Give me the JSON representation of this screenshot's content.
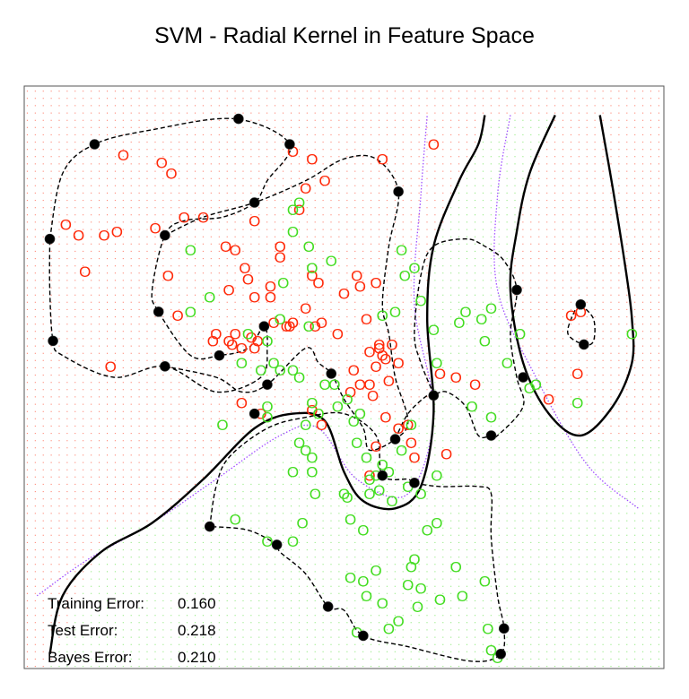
{
  "chart_data": {
    "type": "scatter",
    "title": "SVM - Radial Kernel in Feature Space",
    "xlabel": "",
    "ylabel": "",
    "grid": false,
    "legend": "none",
    "point_marker": "O",
    "support_vector_marker": "filled-circle",
    "colors": {
      "class_red": "#ff2a0a",
      "class_green": "#44dd22",
      "support_vector": "#000000",
      "bayes_boundary": "#a050ff",
      "svm_boundary": "#000000",
      "margin": "#000000"
    },
    "series": [
      {
        "class": "red",
        "points": [
          [
            15.5,
            90.5
          ],
          [
            21.5,
            89.5
          ],
          [
            23,
            88
          ],
          [
            42,
            91
          ],
          [
            45,
            90
          ],
          [
            44,
            86
          ],
          [
            47,
            87
          ],
          [
            64,
            92
          ],
          [
            56,
            90
          ],
          [
            43,
            83
          ],
          [
            36,
            81.5
          ],
          [
            6.5,
            81
          ],
          [
            8.5,
            79.5
          ],
          [
            12.5,
            79.5
          ],
          [
            14.5,
            80
          ],
          [
            20.5,
            80.5
          ],
          [
            25,
            82
          ],
          [
            28,
            82
          ],
          [
            33,
            77.5
          ],
          [
            34.5,
            75
          ],
          [
            9.5,
            74.5
          ],
          [
            22.5,
            74
          ],
          [
            31.5,
            78
          ],
          [
            35,
            73.5
          ],
          [
            38.5,
            72.5
          ],
          [
            40,
            76.5
          ],
          [
            40,
            78
          ],
          [
            45,
            74
          ],
          [
            46,
            73
          ],
          [
            50,
            71.5
          ],
          [
            49,
            66
          ],
          [
            52,
            74
          ],
          [
            52.5,
            72.5
          ],
          [
            55,
            73
          ],
          [
            53.5,
            68
          ],
          [
            32,
            72
          ],
          [
            36,
            71
          ],
          [
            38.5,
            71
          ],
          [
            39,
            67.5
          ],
          [
            41,
            67
          ],
          [
            42,
            67.5
          ],
          [
            44,
            69.5
          ],
          [
            45.5,
            67
          ],
          [
            46.5,
            67.5
          ],
          [
            32,
            65
          ],
          [
            29.5,
            65
          ],
          [
            30,
            66
          ],
          [
            32.5,
            64.5
          ],
          [
            33,
            66
          ],
          [
            34,
            64
          ],
          [
            35.5,
            65.5
          ],
          [
            36,
            64
          ],
          [
            36.5,
            65
          ],
          [
            41.5,
            67
          ],
          [
            24,
            68.5
          ],
          [
            13.5,
            61.5
          ],
          [
            54,
            63.5
          ],
          [
            55,
            61.5
          ],
          [
            55.5,
            64
          ],
          [
            56.5,
            62.5
          ],
          [
            57.5,
            64.5
          ],
          [
            58.5,
            62
          ],
          [
            57,
            59.5
          ],
          [
            54,
            59
          ],
          [
            52.5,
            59
          ],
          [
            51,
            58
          ],
          [
            51.5,
            61
          ],
          [
            54.5,
            57.5
          ],
          [
            56.5,
            54.5
          ],
          [
            58.5,
            53
          ],
          [
            60,
            53.5
          ],
          [
            60.5,
            51
          ],
          [
            45,
            55.5
          ],
          [
            46.5,
            53.5
          ],
          [
            34,
            56.5
          ],
          [
            37,
            55
          ],
          [
            67.5,
            60
          ],
          [
            70.5,
            59
          ],
          [
            65,
            60.5
          ],
          [
            56,
            63
          ],
          [
            55.5,
            64.5
          ],
          [
            82,
            57
          ],
          [
            55,
            50.5
          ],
          [
            54,
            46.5
          ],
          [
            61,
            49
          ],
          [
            66,
            49.5
          ],
          [
            86.5,
            60.5
          ],
          [
            85.5,
            68.5
          ],
          [
            87,
            69
          ]
        ]
      },
      {
        "class": "green",
        "points": [
          [
            43,
            84
          ],
          [
            42,
            83
          ],
          [
            42,
            80
          ],
          [
            26,
            77.5
          ],
          [
            44.5,
            78
          ],
          [
            45,
            75
          ],
          [
            48,
            76
          ],
          [
            59,
            77.5
          ],
          [
            61,
            75
          ],
          [
            59.5,
            74
          ],
          [
            40.5,
            73
          ],
          [
            29,
            71
          ],
          [
            26,
            69
          ],
          [
            35,
            66
          ],
          [
            38,
            65
          ],
          [
            40,
            68
          ],
          [
            44.5,
            67
          ],
          [
            56,
            68.5
          ],
          [
            62,
            70.5
          ],
          [
            58,
            69
          ],
          [
            64,
            66.5
          ],
          [
            64.5,
            62
          ],
          [
            73,
            69.5
          ],
          [
            68,
            67.5
          ],
          [
            69,
            69
          ],
          [
            71.5,
            68
          ],
          [
            72,
            65
          ],
          [
            75.5,
            62
          ],
          [
            77.5,
            66
          ],
          [
            80,
            59
          ],
          [
            79,
            58.5
          ],
          [
            70,
            56
          ],
          [
            73,
            54.5
          ],
          [
            86.5,
            56.5
          ],
          [
            95,
            66
          ],
          [
            34,
            62
          ],
          [
            37,
            61
          ],
          [
            39,
            62
          ],
          [
            40,
            61
          ],
          [
            42,
            61
          ],
          [
            43,
            60
          ],
          [
            45,
            56.5
          ],
          [
            46,
            55
          ],
          [
            49,
            56
          ],
          [
            48.5,
            59
          ],
          [
            47,
            59
          ],
          [
            50.5,
            57
          ],
          [
            38,
            56
          ],
          [
            38,
            54.5
          ],
          [
            31,
            53.5
          ],
          [
            44,
            53.5
          ],
          [
            43,
            51
          ],
          [
            44,
            50
          ],
          [
            45,
            49
          ],
          [
            42,
            47
          ],
          [
            45,
            47
          ],
          [
            45.5,
            44
          ],
          [
            52,
            51
          ],
          [
            51.5,
            54
          ],
          [
            52.5,
            55
          ],
          [
            53.5,
            49
          ],
          [
            55,
            46.5
          ],
          [
            54,
            44
          ],
          [
            55.5,
            44.5
          ],
          [
            56,
            48
          ],
          [
            57,
            47
          ],
          [
            60,
            45
          ],
          [
            60.5,
            53.5
          ],
          [
            59,
            50
          ],
          [
            50,
            44
          ],
          [
            50.5,
            43.5
          ],
          [
            51,
            40.5
          ],
          [
            53,
            39
          ],
          [
            54,
            46
          ],
          [
            57.5,
            43
          ],
          [
            62,
            44
          ],
          [
            64.5,
            46.5
          ],
          [
            64.5,
            40
          ],
          [
            63,
            39
          ],
          [
            61,
            35
          ],
          [
            60.5,
            34
          ],
          [
            60,
            31.5
          ],
          [
            62,
            31
          ],
          [
            65,
            29.5
          ],
          [
            61.5,
            28.5
          ],
          [
            58.5,
            26.5
          ],
          [
            56,
            29
          ],
          [
            53.5,
            30
          ],
          [
            55,
            33.5
          ],
          [
            53,
            32
          ],
          [
            51,
            32.5
          ],
          [
            57,
            25.5
          ],
          [
            52,
            25
          ],
          [
            33,
            40.5
          ],
          [
            38,
            37.5
          ],
          [
            42,
            37.5
          ],
          [
            43.5,
            40
          ],
          [
            67.5,
            34
          ],
          [
            72,
            32
          ],
          [
            68.5,
            30
          ],
          [
            72.5,
            25.5
          ],
          [
            73,
            22.5
          ],
          [
            74,
            21.5
          ]
        ]
      },
      {
        "class": "support_vector",
        "points": [
          [
            11,
            92
          ],
          [
            33.5,
            95.5
          ],
          [
            41.5,
            92
          ],
          [
            58.5,
            85.5
          ],
          [
            36,
            84
          ],
          [
            22,
            79.5
          ],
          [
            4,
            79
          ],
          [
            21,
            69
          ],
          [
            30.5,
            63
          ],
          [
            37.5,
            67
          ],
          [
            4.5,
            65
          ],
          [
            22,
            61.5
          ],
          [
            38,
            59
          ],
          [
            48,
            60.5
          ],
          [
            64,
            57.5
          ],
          [
            58,
            51.5
          ],
          [
            77,
            72
          ],
          [
            73,
            52
          ],
          [
            87,
            70
          ],
          [
            87.5,
            64.5
          ],
          [
            78,
            60
          ],
          [
            36,
            55
          ],
          [
            56,
            46.5
          ],
          [
            61,
            45.5
          ],
          [
            29,
            39.5
          ],
          [
            39.5,
            37
          ],
          [
            47.5,
            28.5
          ],
          [
            53,
            24.5
          ],
          [
            75,
            25.5
          ],
          [
            74.5,
            22
          ]
        ]
      }
    ],
    "annotations": [
      {
        "label": "Training Error:",
        "value": "0.160"
      },
      {
        "label": "Test Error:",
        "value": "0.218"
      },
      {
        "label": "Bayes Error:",
        "value": "0.210"
      }
    ],
    "xlim": [
      0,
      100
    ],
    "ylim": [
      20,
      100
    ]
  }
}
